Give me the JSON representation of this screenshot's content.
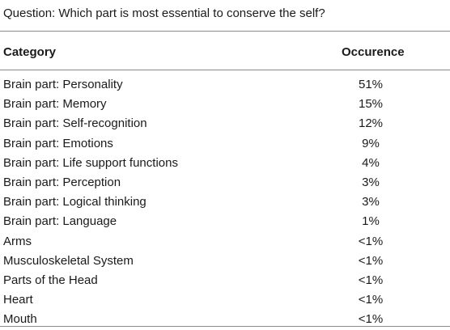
{
  "table": {
    "caption": "Question: Which part is most essential to conserve the self?",
    "headers": {
      "category": "Category",
      "occurrence": "Occurence"
    },
    "rows": [
      {
        "category": "Brain part: Personality",
        "occurrence": "51%"
      },
      {
        "category": "Brain part: Memory",
        "occurrence": "15%"
      },
      {
        "category": "Brain part: Self-recognition",
        "occurrence": "12%"
      },
      {
        "category": "Brain part: Emotions",
        "occurrence": "9%"
      },
      {
        "category": "Brain part: Life support functions",
        "occurrence": "4%"
      },
      {
        "category": "Brain part: Perception",
        "occurrence": "3%"
      },
      {
        "category": "Brain part: Logical thinking",
        "occurrence": "3%"
      },
      {
        "category": "Brain part: Language",
        "occurrence": "1%"
      },
      {
        "category": "Arms",
        "occurrence": "<1%"
      },
      {
        "category": "Musculoskeletal System",
        "occurrence": "<1%"
      },
      {
        "category": "Parts of the Head",
        "occurrence": "<1%"
      },
      {
        "category": "Heart",
        "occurrence": "<1%"
      },
      {
        "category": "Mouth",
        "occurrence": "<1%"
      }
    ]
  }
}
